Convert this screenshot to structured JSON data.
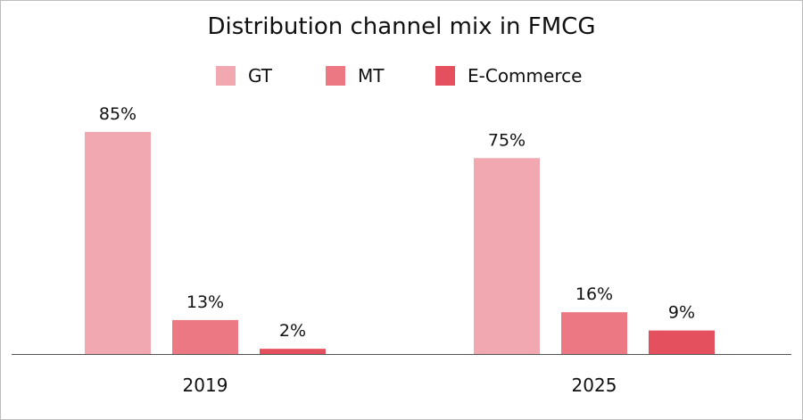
{
  "chart_data": {
    "type": "bar",
    "title": "Distribution channel mix in FMCG",
    "categories": [
      "2019",
      "2025"
    ],
    "series": [
      {
        "name": "GT",
        "values": [
          85,
          75
        ],
        "color": "#f2a8b0"
      },
      {
        "name": "MT",
        "values": [
          13,
          16
        ],
        "color": "#ec7883"
      },
      {
        "name": "E-Commerce",
        "values": [
          2,
          9
        ],
        "color": "#e4505e"
      }
    ],
    "value_labels": [
      [
        "85%",
        "75%"
      ],
      [
        "13%",
        "16%"
      ],
      [
        "2%",
        "9%"
      ]
    ],
    "xlabel": "",
    "ylabel": "",
    "ylim": [
      0,
      100
    ],
    "grid": false,
    "legend": "top-center"
  }
}
